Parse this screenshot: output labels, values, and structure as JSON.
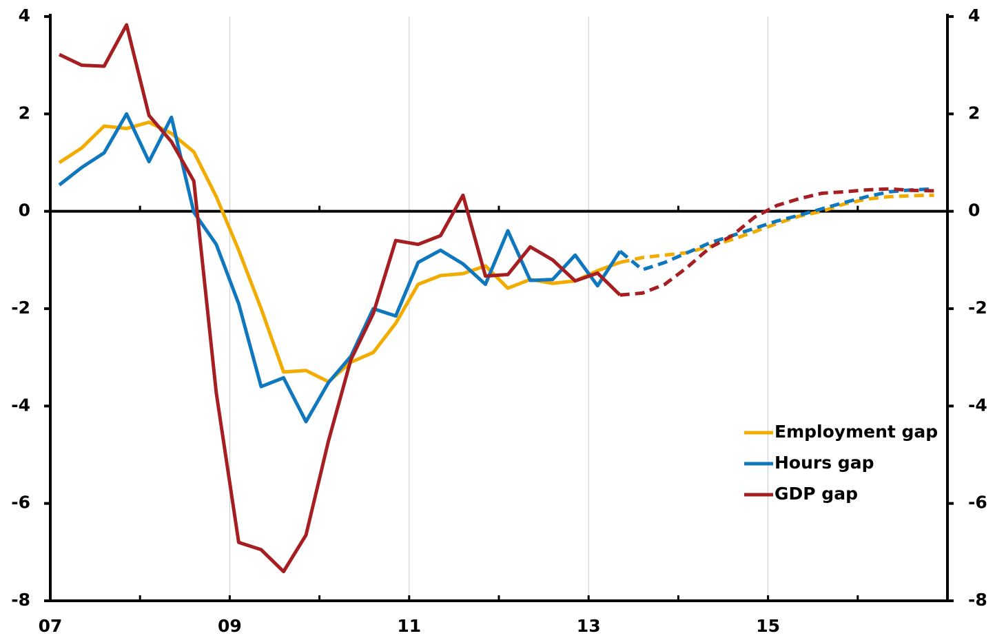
{
  "chart_data": {
    "type": "line",
    "x": [
      2007.1,
      2007.35,
      2007.6,
      2007.85,
      2008.1,
      2008.35,
      2008.6,
      2008.85,
      2009.1,
      2009.35,
      2009.6,
      2009.85,
      2010.1,
      2010.35,
      2010.6,
      2010.85,
      2011.1,
      2011.35,
      2011.6,
      2011.85,
      2012.1,
      2012.35,
      2012.6,
      2012.85,
      2013.1,
      2013.35,
      2013.6,
      2013.85,
      2014.1,
      2014.35,
      2014.6,
      2014.85,
      2015.1,
      2015.35,
      2015.6,
      2015.85,
      2016.1,
      2016.35,
      2016.6,
      2016.85
    ],
    "series": [
      {
        "name": "Employment gap",
        "color": "#f2ab00",
        "values": [
          1.0,
          1.3,
          1.75,
          1.7,
          1.83,
          1.6,
          1.22,
          0.3,
          -0.8,
          -2.0,
          -3.3,
          -3.27,
          -3.5,
          -3.1,
          -2.9,
          -2.3,
          -1.5,
          -1.32,
          -1.28,
          -1.12,
          -1.58,
          -1.4,
          -1.48,
          -1.43,
          -1.22,
          -1.05,
          -0.95,
          -0.9,
          -0.85,
          -0.72,
          -0.58,
          -0.42,
          -0.25,
          -0.1,
          0.0,
          0.15,
          0.25,
          0.3,
          0.32,
          0.33
        ]
      },
      {
        "name": "Hours gap",
        "color": "#0f77bd",
        "values": [
          0.54,
          0.9,
          1.2,
          2.0,
          1.02,
          1.93,
          -0.02,
          -0.68,
          -1.9,
          -3.6,
          -3.42,
          -4.32,
          -3.52,
          -2.98,
          -2.0,
          -2.15,
          -1.05,
          -0.8,
          -1.08,
          -1.5,
          -0.4,
          -1.42,
          -1.4,
          -0.9,
          -1.53,
          -0.82,
          -1.2,
          -1.05,
          -0.85,
          -0.65,
          -0.5,
          -0.35,
          -0.2,
          -0.08,
          0.05,
          0.18,
          0.3,
          0.4,
          0.44,
          0.46
        ]
      },
      {
        "name": "GDP gap",
        "color": "#a51e22",
        "values": [
          3.22,
          3.0,
          2.98,
          3.83,
          1.97,
          1.43,
          0.62,
          -3.73,
          -6.8,
          -6.95,
          -7.4,
          -6.65,
          -4.72,
          -3.05,
          -2.1,
          -0.6,
          -0.68,
          -0.5,
          0.33,
          -1.33,
          -1.3,
          -0.73,
          -1.0,
          -1.43,
          -1.27,
          -1.72,
          -1.68,
          -1.5,
          -1.15,
          -0.75,
          -0.5,
          -0.12,
          0.12,
          0.26,
          0.37,
          0.4,
          0.44,
          0.46,
          0.43,
          0.42
        ]
      }
    ],
    "dashed_from_x": 2013.35,
    "xlim": [
      2007,
      2017
    ],
    "xticks": [
      {
        "value": 2007,
        "label": "07"
      },
      {
        "value": 2009,
        "label": "09"
      },
      {
        "value": 2011,
        "label": "11"
      },
      {
        "value": 2013,
        "label": "13"
      },
      {
        "value": 2015,
        "label": "15"
      }
    ],
    "xminorticks": [
      2008,
      2010,
      2012,
      2014,
      2016
    ],
    "ylim": [
      -8,
      4
    ],
    "yticks": [
      -8,
      -6,
      -4,
      -2,
      0,
      2,
      4
    ],
    "y2lim": [
      -8,
      4
    ],
    "y2ticks": [
      -8,
      -6,
      -4,
      -2,
      0,
      2,
      4
    ],
    "grid": true,
    "legend": "lower right"
  }
}
